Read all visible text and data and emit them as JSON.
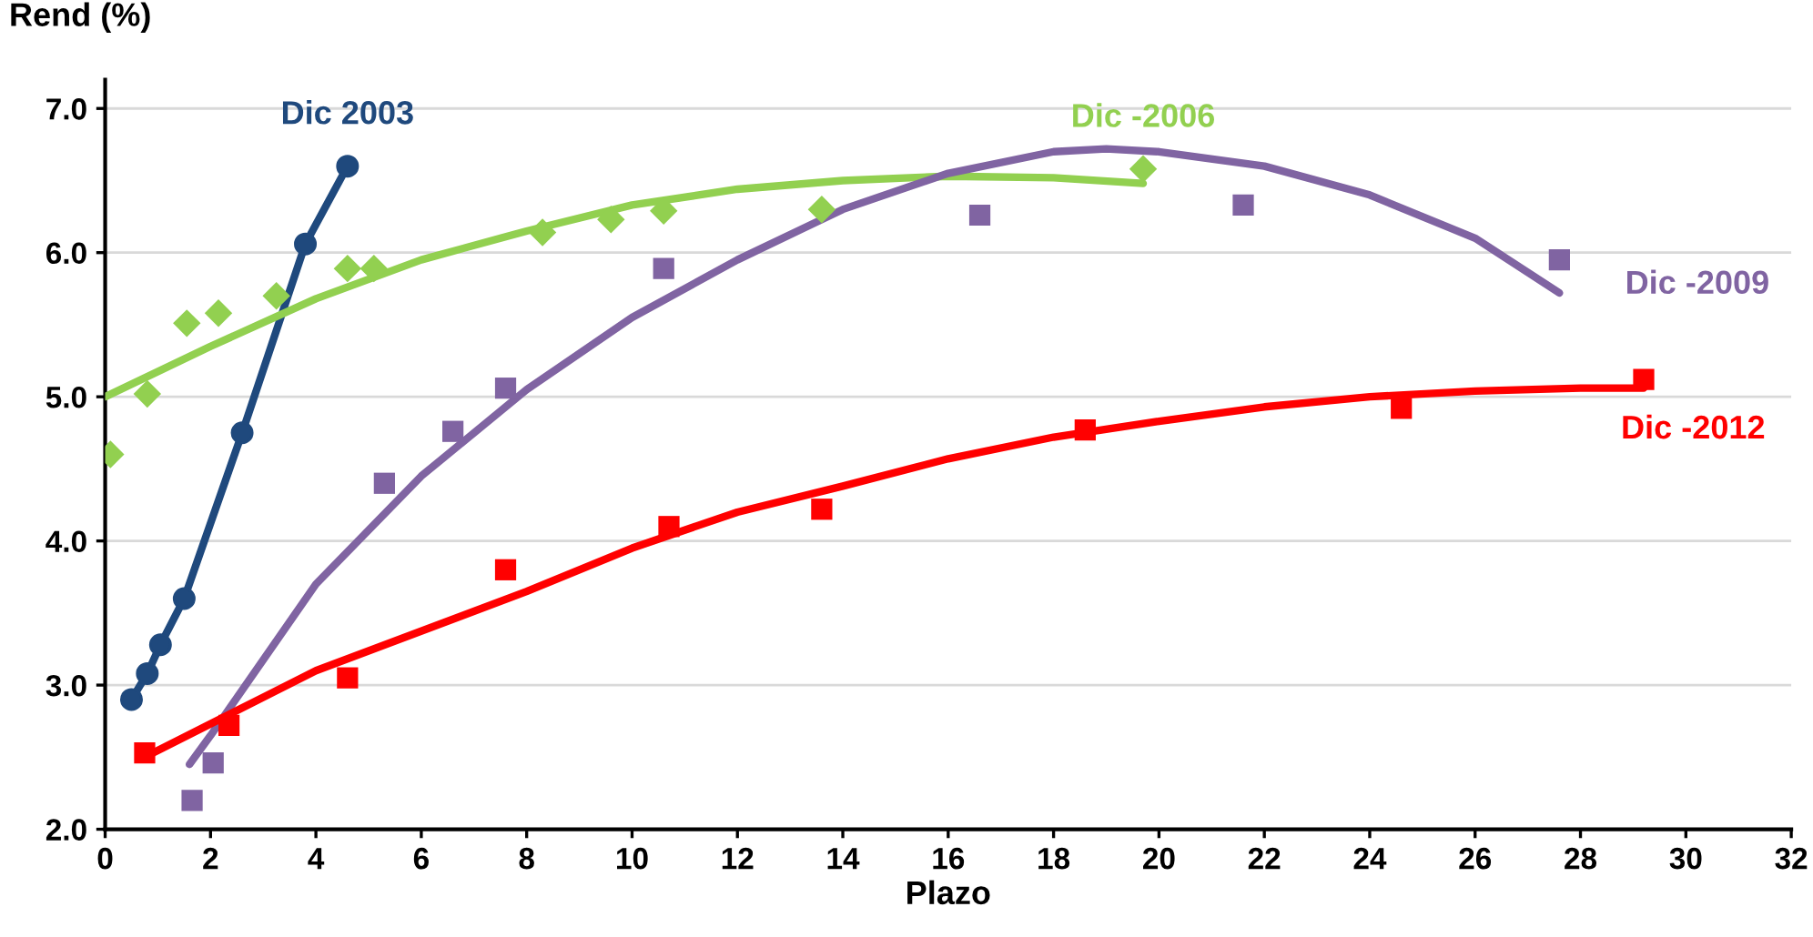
{
  "chart_data": {
    "type": "scatter",
    "xlabel": "Plazo",
    "ylabel": "Rend (%)",
    "xlim": [
      0,
      32
    ],
    "xticks": [
      0,
      2,
      4,
      6,
      8,
      10,
      12,
      14,
      16,
      18,
      20,
      22,
      24,
      26,
      28,
      30,
      32
    ],
    "ylim": [
      2,
      7.2
    ],
    "yticks": [
      {
        "value": 2,
        "label": "2.0"
      },
      {
        "value": 3,
        "label": "3.0"
      },
      {
        "value": 4,
        "label": "4.0"
      },
      {
        "value": 5,
        "label": "5.0"
      },
      {
        "value": 6,
        "label": "6.0"
      },
      {
        "value": 7,
        "label": "7.0"
      }
    ],
    "grid": "y",
    "legend": false,
    "series": [
      {
        "name": "Dic 2003",
        "type": "line",
        "marker": "circle",
        "color": "#1f497d",
        "x": [
          0.5,
          0.8,
          1.05,
          1.5,
          2.6,
          3.8,
          4.6
        ],
        "values": [
          2.9,
          3.08,
          3.28,
          3.6,
          4.75,
          6.06,
          6.6
        ]
      },
      {
        "name": "Dic -2006",
        "marker": "diamond",
        "color": "#92d050",
        "x": [
          0.1,
          0.8,
          1.55,
          2.15,
          3.25,
          4.6,
          5.1,
          8.3,
          9.6,
          10.6,
          13.6,
          19.7
        ],
        "values": [
          4.6,
          5.02,
          5.51,
          5.58,
          5.7,
          5.89,
          5.89,
          6.14,
          6.23,
          6.29,
          6.3,
          6.58
        ]
      },
      {
        "type": "line",
        "marker": "none",
        "color": "#92d050",
        "x": [
          0,
          2,
          4,
          6,
          8,
          10,
          12,
          14,
          16,
          18,
          19.7
        ],
        "values": [
          5.0,
          5.35,
          5.68,
          5.95,
          6.15,
          6.33,
          6.44,
          6.5,
          6.53,
          6.52,
          6.48
        ]
      },
      {
        "name": "Dic -2009",
        "marker": "square",
        "color": "#8064a2",
        "x": [
          1.65,
          2.05,
          5.3,
          6.6,
          7.6,
          10.6,
          16.6,
          21.6,
          27.6
        ],
        "values": [
          2.2,
          2.46,
          4.4,
          4.76,
          5.06,
          5.89,
          6.26,
          6.33,
          5.95
        ]
      },
      {
        "type": "line",
        "marker": "none",
        "color": "#8064a2",
        "x": [
          1.6,
          2,
          4,
          6,
          8,
          10,
          12,
          14,
          16,
          18,
          19,
          20,
          22,
          24,
          26,
          27.6
        ],
        "values": [
          2.45,
          2.65,
          3.7,
          4.45,
          5.05,
          5.55,
          5.95,
          6.3,
          6.55,
          6.7,
          6.72,
          6.7,
          6.6,
          6.4,
          6.1,
          5.72
        ]
      },
      {
        "name": "Dic -2012",
        "marker": "square",
        "color": "#ff0000",
        "x": [
          0.75,
          2.35,
          4.6,
          7.6,
          10.7,
          13.6,
          18.6,
          24.6,
          29.2
        ],
        "values": [
          2.53,
          2.72,
          3.05,
          3.8,
          4.1,
          4.22,
          4.77,
          4.92,
          5.12
        ]
      },
      {
        "type": "line",
        "marker": "none",
        "color": "#ff0000",
        "x": [
          0.75,
          4,
          8,
          10,
          12,
          14,
          16,
          18,
          20,
          22,
          24,
          26,
          28,
          29.2
        ],
        "values": [
          2.5,
          3.1,
          3.65,
          3.95,
          4.2,
          4.38,
          4.57,
          4.72,
          4.83,
          4.93,
          5.0,
          5.04,
          5.06,
          5.06
        ]
      }
    ]
  }
}
